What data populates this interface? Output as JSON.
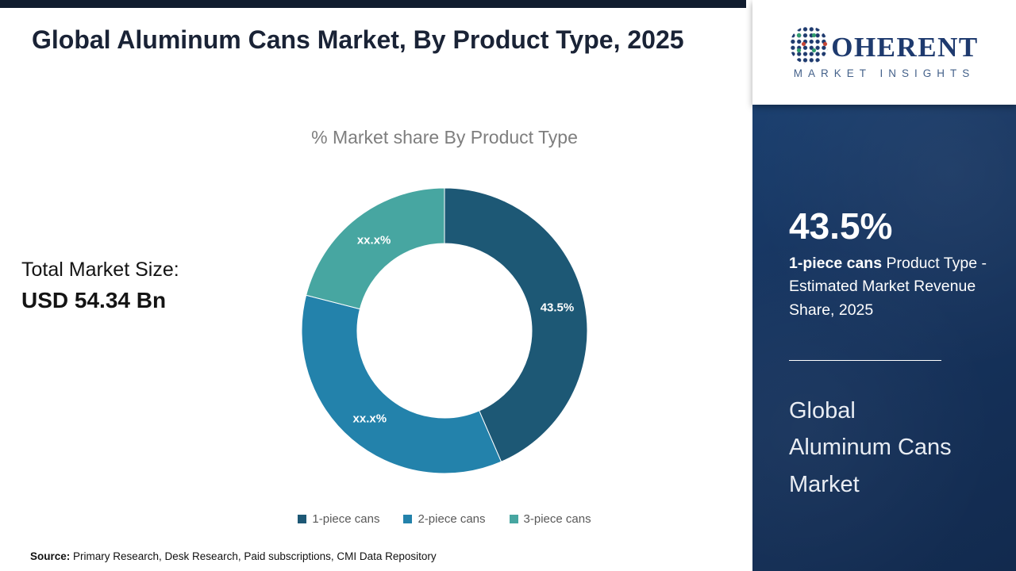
{
  "page": {
    "title": "Global Aluminum Cans Market, By Product Type, 2025",
    "source_label": "Source:",
    "source_text": " Primary Research, Desk Research, Paid subscriptions, CMI Data Repository",
    "top_bar_color": "#101c2e"
  },
  "market": {
    "total_label": "Total Market Size:",
    "total_value": "USD 54.34 Bn"
  },
  "chart_data": {
    "type": "pie",
    "subtype": "donut",
    "title": "% Market share By Product Type",
    "categories": [
      "1-piece cans",
      "2-piece cans",
      "3-piece cans"
    ],
    "values": [
      43.5,
      35.5,
      21.0
    ],
    "display_labels": [
      "43.5%",
      "xx.x%",
      "xx.x%"
    ],
    "colors": [
      "#1d5875",
      "#2382ab",
      "#47a6a1"
    ],
    "legend_position": "bottom",
    "start_angle_deg": 0,
    "direction": "clockwise",
    "inner_radius_ratio": 0.61
  },
  "sidebar": {
    "stat_value": "43.5%",
    "stat_desc_bold": "1-piece cans",
    "stat_desc_rest": " Product Type - Estimated Market Revenue Share, 2025",
    "report_title": "Global Aluminum Cans Market",
    "panel_bg": "#173662"
  },
  "logo": {
    "brand_c": "C",
    "brand_rest": "OHERENT",
    "tagline": "MARKET INSIGHTS",
    "brand_color": "#1e3a6e",
    "icon": "dotted-globe-c-icon"
  }
}
